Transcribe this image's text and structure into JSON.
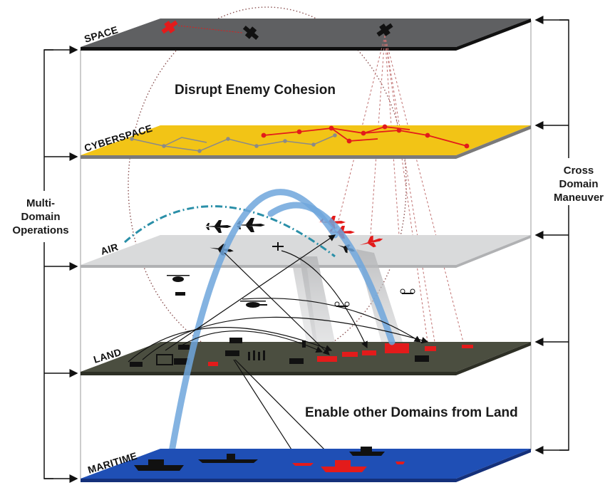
{
  "domains": [
    {
      "key": "space",
      "label": "SPACE",
      "color": "#5f6062"
    },
    {
      "key": "cyberspace",
      "label": "CYBERSPACE",
      "color": "#f2c416"
    },
    {
      "key": "air",
      "label": "AIR",
      "color": "#d9dadb"
    },
    {
      "key": "land",
      "label": "LAND",
      "color": "#4b4e40"
    },
    {
      "key": "maritime",
      "label": "MARITIME",
      "color": "#1f4fb5"
    }
  ],
  "captions": {
    "top": "Disrupt Enemy Cohesion",
    "bottom": "Enable other Domains from Land"
  },
  "left_bracket": {
    "lines": [
      "Multi-",
      "Domain",
      "Operations"
    ]
  },
  "right_bracket": {
    "lines": [
      "Cross",
      "Domain",
      "Maneuver"
    ]
  },
  "colors": {
    "enemy": "#e31b1b",
    "friendly": "#111111",
    "fires_arc": "#6fa6dc",
    "air_defense_arc": "#2a8fa8"
  }
}
